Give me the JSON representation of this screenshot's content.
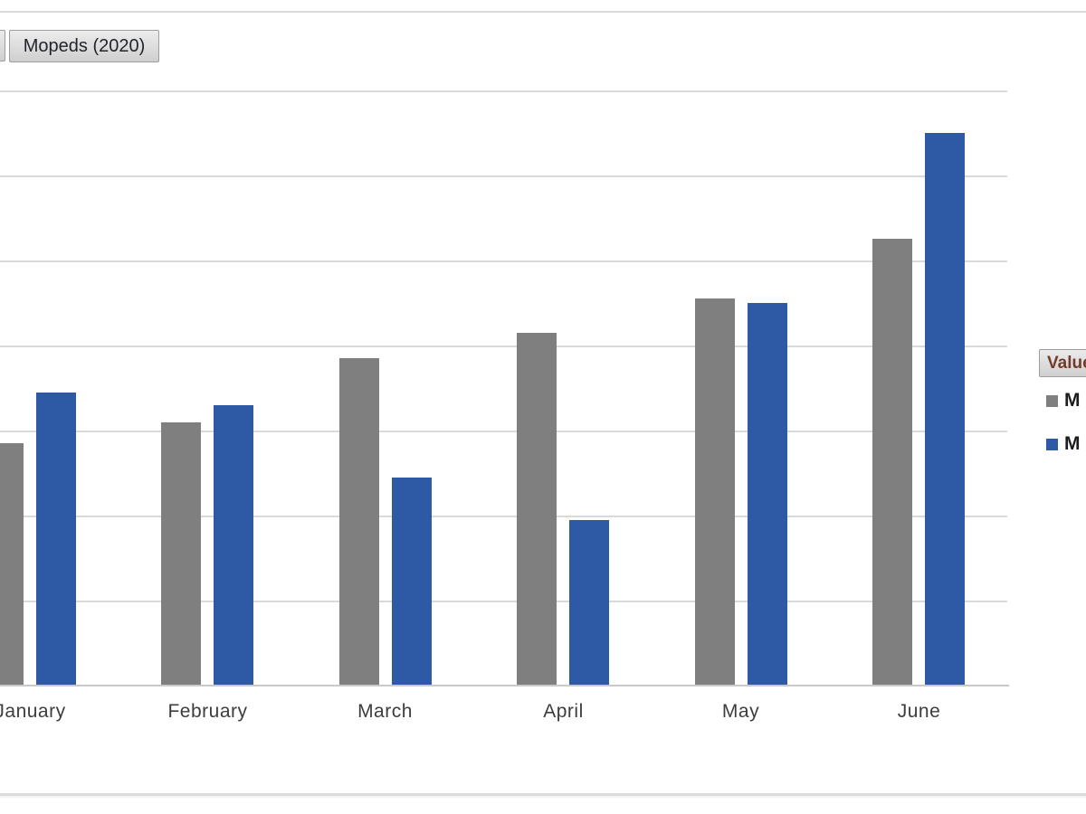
{
  "field_buttons": {
    "main": {
      "label": "Mopeds (2020)"
    },
    "left_partial_visible": true
  },
  "legend": {
    "header": {
      "label": "Value",
      "text_color": "#743a2a"
    },
    "items": [
      {
        "label_visible": "M",
        "color": "#7f7f7f"
      },
      {
        "label_visible": "M",
        "color": "#2e59a5"
      }
    ],
    "position": "right",
    "note_labels_cropped": true
  },
  "chart_data": {
    "type": "bar",
    "title": "Mopeds (2020)",
    "categories": [
      "January",
      "February",
      "March",
      "April",
      "May",
      "June"
    ],
    "series": [
      {
        "name_visible": "M",
        "color": "#7f7f7f",
        "values": [
          28.5,
          31,
          38.5,
          41.5,
          45.5,
          52.5
        ]
      },
      {
        "name_visible": "M",
        "color": "#2e59a5",
        "values": [
          34.5,
          33,
          24.5,
          19.5,
          45,
          65
        ]
      }
    ],
    "xlabel": "",
    "ylabel": "",
    "ylim": [
      0,
      70
    ],
    "gridline_step": 10,
    "grid": true,
    "y_axis_labels_visible": false,
    "legend_position": "right",
    "values_estimated_from_gridlines": true
  },
  "colors": {
    "series_gray": "#7f7f7f",
    "series_blue": "#2e59a5",
    "gridline": "#d9d9d9",
    "axis_line": "#c9c9c9",
    "category_label": "#3d3d3d",
    "button_border": "#9d9d9d",
    "border_top": "#d9d9d9",
    "border_bottom": "#dcdcdc"
  }
}
